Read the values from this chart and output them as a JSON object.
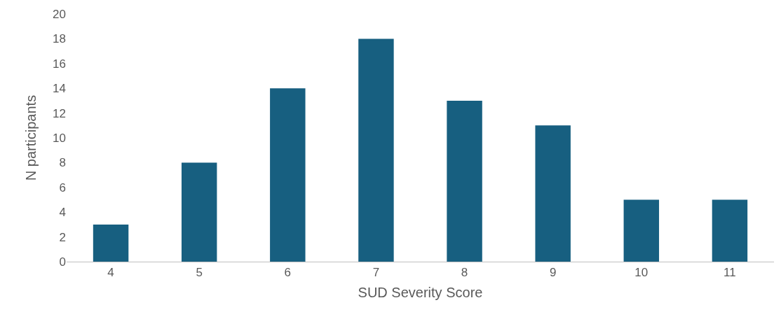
{
  "chart_data": {
    "type": "bar",
    "xlabel": "SUD Severity Score",
    "ylabel": "N participants",
    "categories": [
      "4",
      "5",
      "6",
      "7",
      "8",
      "9",
      "10",
      "11"
    ],
    "values": [
      3,
      8,
      14,
      18,
      13,
      11,
      5,
      5
    ],
    "color": "#175f80",
    "ylim": [
      0,
      20
    ],
    "yticks": [
      0,
      2,
      4,
      6,
      8,
      10,
      12,
      14,
      16,
      18,
      20
    ],
    "grid": false,
    "legend": false
  }
}
